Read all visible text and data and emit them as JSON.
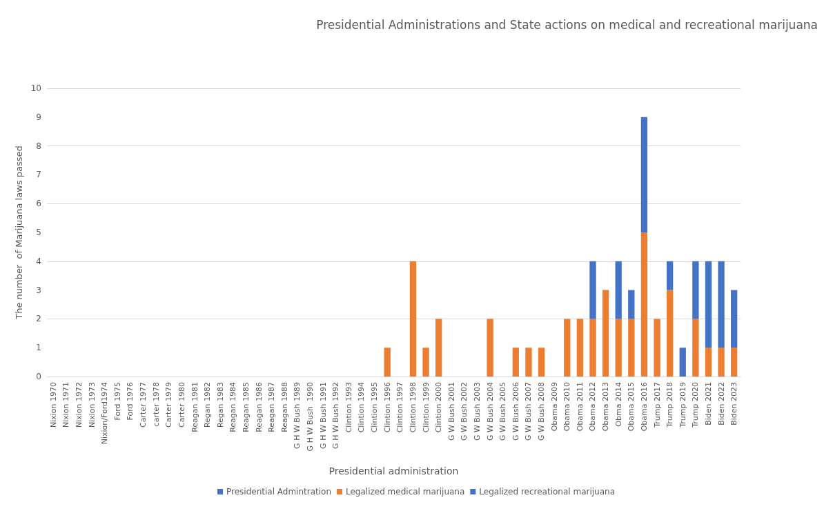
{
  "chart_data": {
    "type": "bar",
    "title": "Presidential Administrations and State actions on medical and recreational marijuana",
    "xlabel": "Presidential administration",
    "ylabel": "The number  of Marijuana laws passed",
    "categories": [
      "Nixion 1970",
      "Nixion 1971",
      "Nixion 1972",
      "Nixion 1973",
      "Nixion/Ford1974",
      "Ford 1975",
      "Ford 1976",
      "Carter 1977",
      "carter 1978",
      "Carter 1979",
      "Carter 1980",
      "Reagan 1981",
      "Regan 1982",
      "Regan 1983",
      "Reagan 1984",
      "Reagan 1985",
      "Reagan 1986",
      "Reagan 1987",
      "Reagan 1988",
      "G H W Bush 1989",
      "G H W Bush  1990",
      "G H W Bush 1991",
      "G H W Bush 1992",
      "Clintion 1993",
      "Clintion 1994",
      "Clintion 1995",
      "Clintion 1996",
      "Clintion 1997",
      "Clintion 1998",
      "Clintion 1999",
      "Clintion 2000",
      "G W Bush 2001",
      "G W Bush 2002",
      "G W Bush 2003",
      "G W Bush 2004",
      "G W Bush 2005",
      "G W Bush 2006",
      "G W Bush 2007",
      "G W Bush 2008",
      "Obama 2009",
      "Obama 2010",
      "Obama 2011",
      "Obama 2012",
      "Obama 2013",
      "Obma 2014",
      "Obama 2015",
      "Obama 2016",
      "Trump 2017",
      "Trump 2018",
      "Trump 2019",
      "Trump 2020",
      "Biden 2021",
      "Biden 2022",
      "Biden 2023"
    ],
    "series": [
      {
        "name": "Presidential Admintration",
        "color": "#4472c4",
        "values": [
          null,
          null,
          null,
          null,
          null,
          null,
          null,
          null,
          null,
          null,
          null,
          null,
          null,
          null,
          null,
          null,
          null,
          null,
          null,
          null,
          null,
          null,
          null,
          null,
          null,
          null,
          null,
          null,
          null,
          null,
          null,
          null,
          null,
          null,
          null,
          null,
          null,
          null,
          null,
          null,
          null,
          null,
          null,
          null,
          null,
          null,
          null,
          null,
          null,
          null,
          null,
          null,
          null,
          null
        ]
      },
      {
        "name": "Legalized medical marijuana",
        "color": "#ed7d31",
        "values": [
          0,
          0,
          0,
          0,
          0,
          0,
          0,
          0,
          0,
          0,
          0,
          0,
          0,
          0,
          0,
          0,
          0,
          0,
          0,
          0,
          0,
          0,
          0,
          0,
          0,
          0,
          1,
          0,
          4,
          1,
          2,
          0,
          0,
          0,
          2,
          0,
          1,
          1,
          1,
          0,
          2,
          2,
          2,
          3,
          2,
          2,
          5,
          2,
          3,
          0,
          2,
          1,
          1,
          1
        ]
      },
      {
        "name": "Legalized recreational marijuana",
        "color": "#4472c4",
        "values": [
          0,
          0,
          0,
          0,
          0,
          0,
          0,
          0,
          0,
          0,
          0,
          0,
          0,
          0,
          0,
          0,
          0,
          0,
          0,
          0,
          0,
          0,
          0,
          0,
          0,
          0,
          0,
          0,
          0,
          0,
          0,
          0,
          0,
          0,
          0,
          0,
          0,
          0,
          0,
          0,
          0,
          0,
          2,
          0,
          2,
          1,
          4,
          0,
          1,
          1,
          2,
          3,
          3,
          2
        ]
      }
    ],
    "stacked": true,
    "ylim": [
      0,
      10
    ],
    "yticks": [
      0,
      1,
      2,
      3,
      4,
      5,
      6,
      7,
      8,
      9,
      10
    ],
    "grid": "y",
    "legend": "bottom"
  }
}
